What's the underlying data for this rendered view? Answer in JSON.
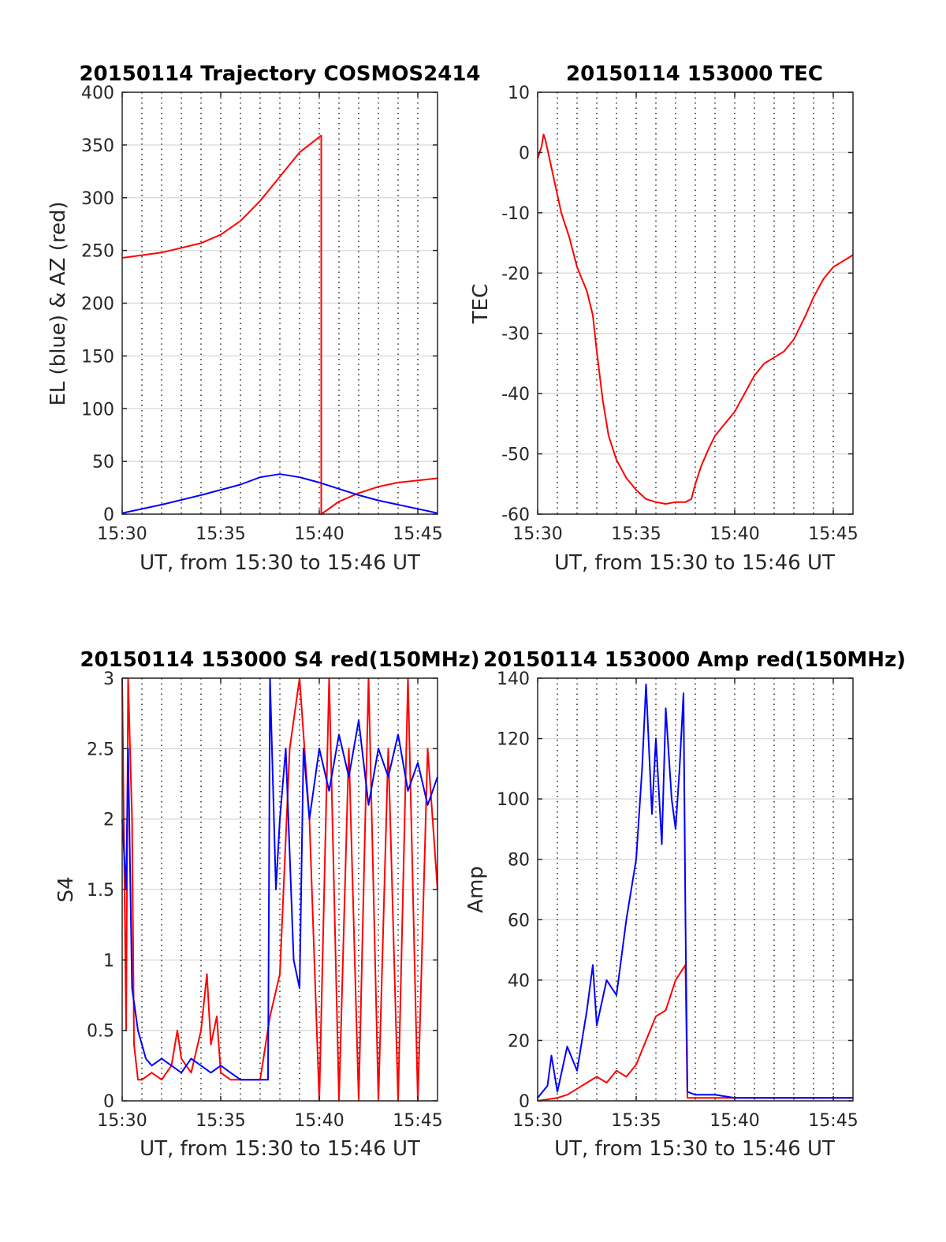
{
  "figure": {
    "colors": {
      "red": "#ff0000",
      "blue": "#0000ff",
      "grid_solid": "#dddddd",
      "grid_dotted": "#000000",
      "axes": "#262626"
    }
  },
  "chart_data": [
    {
      "type": "line",
      "title": "20150114 Trajectory COSMOS2414",
      "xlabel": "UT, from 15:30 to 15:46 UT",
      "ylabel": "EL (blue) & AZ (red)",
      "xlim_minutes": [
        0,
        16
      ],
      "ylim": [
        0,
        400
      ],
      "x_ticks": [
        "15:30",
        "15:35",
        "15:40",
        "15:45"
      ],
      "y_ticks": [
        "0",
        "50",
        "100",
        "150",
        "200",
        "250",
        "300",
        "350",
        "400"
      ],
      "grid": "horizontal solid, vertical dotted every minute",
      "series": [
        {
          "color": "red",
          "x_minutes": [
            0,
            2,
            4,
            5,
            6,
            7,
            8,
            9,
            10.1,
            10.1,
            11,
            12,
            13,
            14,
            15,
            16
          ],
          "values": [
            243,
            248,
            257,
            265,
            278,
            297,
            320,
            343,
            359,
            0,
            12,
            20,
            26,
            30,
            32,
            34
          ]
        },
        {
          "color": "blue",
          "x_minutes": [
            0,
            2,
            4,
            6,
            7,
            8,
            9,
            10,
            11,
            12,
            13,
            14,
            15,
            16
          ],
          "values": [
            1,
            9,
            18,
            28,
            35,
            38,
            35,
            30,
            24,
            18,
            13,
            9,
            5,
            1
          ]
        }
      ]
    },
    {
      "type": "line",
      "title": "20150114 153000 TEC",
      "xlabel": "UT, from 15:30 to 15:46 UT",
      "ylabel": "TEC",
      "xlim_minutes": [
        0,
        16
      ],
      "ylim": [
        -60,
        10
      ],
      "x_ticks": [
        "15:30",
        "15:35",
        "15:40",
        "15:45"
      ],
      "y_ticks": [
        "-60",
        "-50",
        "-40",
        "-30",
        "-20",
        "-10",
        "0",
        "10"
      ],
      "grid": "horizontal solid, vertical dotted every minute",
      "series": [
        {
          "color": "red",
          "x_minutes": [
            0,
            0.2,
            0.3,
            0.4,
            0.8,
            1.2,
            1.6,
            2.0,
            2.5,
            2.8,
            3.0,
            3.3,
            3.6,
            4.0,
            4.5,
            5.0,
            5.5,
            6.0,
            6.5,
            7.0,
            7.5,
            7.8,
            8.0,
            8.3,
            8.7,
            9.0,
            9.5,
            10.0,
            10.5,
            11.0,
            11.5,
            12.0,
            12.5,
            13.0,
            13.3,
            13.6,
            14.0,
            14.5,
            15.0,
            15.5,
            16.0
          ],
          "values": [
            -1,
            1,
            3,
            2,
            -4,
            -10,
            -14,
            -19,
            -23,
            -27,
            -33,
            -41,
            -47,
            -51,
            -54,
            -56,
            -57.5,
            -58,
            -58.3,
            -58,
            -58,
            -57.5,
            -55,
            -52,
            -49,
            -47,
            -45,
            -43,
            -40,
            -37,
            -35,
            -34,
            -33,
            -31,
            -29,
            -27,
            -24,
            -21,
            -19,
            -18,
            -17
          ]
        }
      ]
    },
    {
      "type": "line",
      "title": "20150114 153000 S4 red(150MHz)",
      "xlabel": "UT, from 15:30 to 15:46 UT",
      "ylabel": "S4",
      "xlim_minutes": [
        0,
        16
      ],
      "ylim": [
        0,
        3
      ],
      "x_ticks": [
        "15:30",
        "15:35",
        "15:40",
        "15:45"
      ],
      "y_ticks": [
        "0",
        "0.5",
        "1",
        "1.5",
        "2",
        "2.5",
        "3"
      ],
      "grid": "horizontal solid, vertical dotted every minute",
      "series": [
        {
          "color": "red",
          "x_minutes": [
            0,
            0.2,
            0.3,
            0.5,
            0.6,
            0.8,
            1,
            1.5,
            2,
            2.5,
            2.8,
            3,
            3.5,
            4,
            4.3,
            4.5,
            4.8,
            5,
            5.5,
            6,
            6.5,
            7,
            7.5,
            8,
            8.5,
            9,
            9.5,
            10,
            10.5,
            11,
            11.5,
            12,
            12.5,
            13,
            13.5,
            14,
            14.5,
            15,
            15.5,
            16
          ],
          "values": [
            3,
            0.5,
            3,
            2,
            0.4,
            0.15,
            0.15,
            0.2,
            0.15,
            0.25,
            0.5,
            0.3,
            0.2,
            0.5,
            0.9,
            0.4,
            0.6,
            0.2,
            0.15,
            0.15,
            0.15,
            0.15,
            0.6,
            0.9,
            2.5,
            3,
            2,
            0,
            3,
            0,
            2.5,
            0,
            3,
            0,
            2.5,
            0,
            3,
            0,
            2.5,
            1.5
          ]
        },
        {
          "color": "blue",
          "x_minutes": [
            0,
            0.2,
            0.3,
            0.5,
            0.8,
            1,
            1.2,
            1.5,
            2,
            2.5,
            3,
            3.5,
            4,
            4.5,
            5,
            5.5,
            6,
            6.5,
            7,
            7.4,
            7.5,
            7.8,
            8,
            8.3,
            8.7,
            9,
            9.2,
            9.5,
            10,
            10.5,
            11,
            11.5,
            12,
            12.5,
            13,
            13.5,
            14,
            14.5,
            15,
            15.5,
            16
          ],
          "values": [
            2,
            1.5,
            2.5,
            0.8,
            0.5,
            0.4,
            0.3,
            0.25,
            0.3,
            0.25,
            0.2,
            0.3,
            0.25,
            0.2,
            0.25,
            0.2,
            0.15,
            0.15,
            0.15,
            0.15,
            3,
            1.5,
            2,
            2.5,
            1.0,
            0.8,
            2.5,
            2,
            2.5,
            2.2,
            2.6,
            2.3,
            2.7,
            2.1,
            2.5,
            2.3,
            2.6,
            2.2,
            2.4,
            2.1,
            2.3
          ]
        }
      ]
    },
    {
      "type": "line",
      "title": "20150114 153000 Amp red(150MHz)",
      "xlabel": "UT, from 15:30 to 15:46 UT",
      "ylabel": "Amp",
      "xlim_minutes": [
        0,
        16
      ],
      "ylim": [
        0,
        140
      ],
      "x_ticks": [
        "15:30",
        "15:35",
        "15:40",
        "15:45"
      ],
      "y_ticks": [
        "0",
        "20",
        "40",
        "60",
        "80",
        "100",
        "120",
        "140"
      ],
      "grid": "horizontal solid, vertical dotted every minute",
      "series": [
        {
          "color": "red",
          "x_minutes": [
            0,
            1,
            1.5,
            2,
            2.5,
            3,
            3.5,
            4,
            4.5,
            5,
            5.5,
            6,
            6.5,
            7,
            7.5,
            7.6,
            8,
            9,
            10,
            11,
            12,
            13,
            14,
            15,
            16
          ],
          "values": [
            0,
            1,
            2,
            4,
            6,
            8,
            6,
            10,
            8,
            12,
            20,
            28,
            30,
            40,
            45,
            1,
            1,
            1,
            1,
            1,
            1,
            1,
            1,
            1,
            1
          ]
        },
        {
          "color": "blue",
          "x_minutes": [
            0,
            0.5,
            0.7,
            1,
            1.5,
            2,
            2.5,
            2.8,
            3,
            3.5,
            4,
            4.5,
            5,
            5.3,
            5.5,
            5.8,
            6,
            6.3,
            6.5,
            6.8,
            7,
            7.2,
            7.4,
            7.5,
            7.6,
            8,
            9,
            10,
            11,
            12,
            13,
            14,
            15,
            16
          ],
          "values": [
            1,
            5,
            15,
            3,
            18,
            10,
            30,
            45,
            25,
            40,
            35,
            60,
            80,
            110,
            138,
            95,
            120,
            85,
            130,
            100,
            90,
            110,
            135,
            60,
            3,
            2,
            2,
            1,
            1,
            1,
            1,
            1,
            1,
            1
          ]
        }
      ]
    }
  ]
}
